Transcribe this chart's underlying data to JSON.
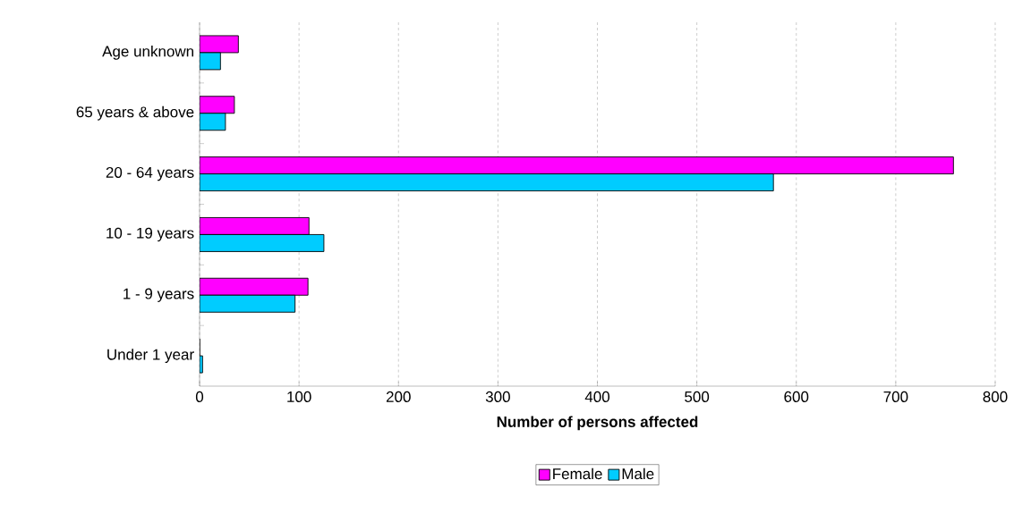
{
  "chart_data": {
    "type": "bar",
    "orientation": "horizontal",
    "categories": [
      "Age unknown",
      "65 years & above",
      "20 - 64 years",
      "10 - 19 years",
      "1 - 9 years",
      "Under 1 year"
    ],
    "series": [
      {
        "name": "Female",
        "color": "#ff00ff",
        "values": [
          39,
          35,
          758,
          110,
          109,
          0
        ]
      },
      {
        "name": "Male",
        "color": "#00ccff",
        "values": [
          21,
          26,
          577,
          125,
          96,
          3
        ]
      }
    ],
    "xlabel": "Number of persons affected",
    "xlim": [
      0,
      800
    ],
    "xticks": [
      0,
      100,
      200,
      300,
      400,
      500,
      600,
      700,
      800
    ],
    "grid": "x",
    "legend": "bottom"
  }
}
